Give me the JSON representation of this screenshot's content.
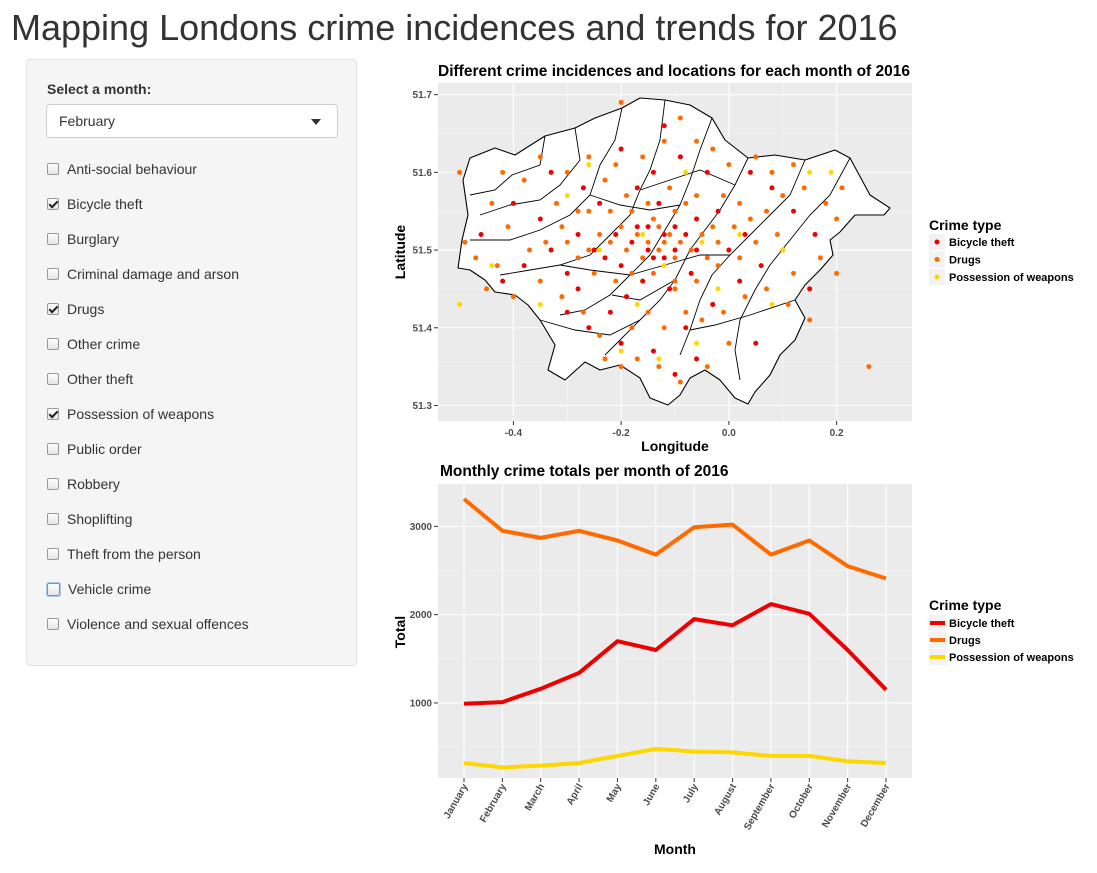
{
  "page": {
    "title": "Mapping Londons crime incidences and trends for 2016"
  },
  "sidebar": {
    "month_label": "Select a month:",
    "month_selected": "February",
    "crime_types": [
      {
        "label": "Anti-social behaviour",
        "checked": false
      },
      {
        "label": "Bicycle theft",
        "checked": true
      },
      {
        "label": "Burglary",
        "checked": false
      },
      {
        "label": "Criminal damage and arson",
        "checked": false
      },
      {
        "label": "Drugs",
        "checked": true
      },
      {
        "label": "Other crime",
        "checked": false
      },
      {
        "label": "Other theft",
        "checked": false
      },
      {
        "label": "Possession of weapons",
        "checked": true
      },
      {
        "label": "Public order",
        "checked": false
      },
      {
        "label": "Robbery",
        "checked": false
      },
      {
        "label": "Shoplifting",
        "checked": false
      },
      {
        "label": "Theft from the person",
        "checked": false
      },
      {
        "label": "Vehicle crime",
        "checked": false,
        "focused": true
      },
      {
        "label": "Violence and sexual offences",
        "checked": false
      }
    ]
  },
  "colors": {
    "bicycle_theft": "#ee0000",
    "drugs": "#ff6a00",
    "possession_of_weapons": "#ffd700",
    "panel_bg": "#ebebeb",
    "grid": "#ffffff"
  },
  "chart_data": [
    {
      "type": "scatter",
      "title": "Different crime incidences and locations for each month of 2016",
      "xlabel": "Longitude",
      "ylabel": "Latitude",
      "xlim": [
        -0.54,
        0.34
      ],
      "ylim": [
        51.28,
        51.715
      ],
      "xticks": [
        -0.4,
        -0.2,
        0.0,
        0.2
      ],
      "xtick_labels": [
        "-0.4",
        "-0.2",
        "0.0",
        "0.2"
      ],
      "yticks": [
        51.3,
        51.4,
        51.5,
        51.6,
        51.7
      ],
      "ytick_labels": [
        "51.3",
        "51.4",
        "51.5",
        "51.6",
        "51.7"
      ],
      "grid": true,
      "legend": {
        "title": "Crime type",
        "placement": "right",
        "entries": [
          "Bicycle theft",
          "Drugs",
          "Possession of weapons"
        ]
      },
      "outline_note": "London borough boundaries drawn as black outlines on white fill",
      "series": [
        {
          "name": "Bicycle theft",
          "color": "#ee0000",
          "points": [
            [
              -0.21,
              51.52
            ],
            [
              -0.18,
              51.51
            ],
            [
              -0.15,
              51.53
            ],
            [
              -0.12,
              51.52
            ],
            [
              -0.1,
              51.5
            ],
            [
              -0.08,
              51.52
            ],
            [
              -0.14,
              51.49
            ],
            [
              -0.2,
              51.48
            ],
            [
              -0.25,
              51.5
            ],
            [
              -0.28,
              51.52
            ],
            [
              -0.3,
              51.47
            ],
            [
              -0.33,
              51.5
            ],
            [
              -0.06,
              51.54
            ],
            [
              -0.02,
              51.55
            ],
            [
              0.0,
              51.5
            ],
            [
              0.03,
              51.52
            ],
            [
              -0.16,
              51.46
            ],
            [
              -0.19,
              51.44
            ],
            [
              -0.22,
              51.42
            ],
            [
              -0.11,
              51.45
            ],
            [
              -0.07,
              51.47
            ],
            [
              -0.13,
              51.56
            ],
            [
              -0.17,
              51.58
            ],
            [
              -0.24,
              51.56
            ],
            [
              -0.27,
              51.58
            ],
            [
              -0.35,
              51.54
            ],
            [
              -0.38,
              51.48
            ],
            [
              -0.42,
              51.46
            ],
            [
              -0.3,
              51.42
            ],
            [
              -0.26,
              51.4
            ],
            [
              -0.2,
              51.38
            ],
            [
              -0.14,
              51.37
            ],
            [
              -0.08,
              51.4
            ],
            [
              -0.03,
              51.43
            ],
            [
              0.02,
              51.46
            ],
            [
              0.06,
              51.48
            ],
            [
              0.1,
              51.5
            ],
            [
              0.12,
              51.55
            ],
            [
              0.08,
              51.58
            ],
            [
              0.04,
              51.6
            ],
            [
              -0.04,
              51.6
            ],
            [
              -0.09,
              51.62
            ],
            [
              -0.14,
              51.6
            ],
            [
              -0.2,
              51.63
            ],
            [
              -0.12,
              51.66
            ],
            [
              -0.46,
              51.52
            ],
            [
              -0.4,
              51.56
            ],
            [
              -0.33,
              51.6
            ],
            [
              -0.23,
              51.49
            ],
            [
              -0.15,
              51.5
            ],
            [
              -0.1,
              51.53
            ],
            [
              -0.12,
              51.49
            ],
            [
              -0.06,
              51.5
            ],
            [
              -0.17,
              51.53
            ],
            [
              -0.28,
              51.45
            ],
            [
              0.15,
              51.45
            ],
            [
              0.16,
              51.52
            ],
            [
              0.05,
              51.38
            ],
            [
              -0.1,
              51.34
            ],
            [
              -0.06,
              51.36
            ]
          ]
        },
        {
          "name": "Drugs",
          "color": "#ff6a00",
          "points": [
            [
              -0.13,
              51.53
            ],
            [
              -0.12,
              51.51
            ],
            [
              -0.11,
              51.52
            ],
            [
              -0.09,
              51.51
            ],
            [
              -0.1,
              51.49
            ],
            [
              -0.07,
              51.5
            ],
            [
              -0.05,
              51.52
            ],
            [
              -0.03,
              51.53
            ],
            [
              -0.15,
              51.51
            ],
            [
              -0.17,
              51.52
            ],
            [
              -0.19,
              51.5
            ],
            [
              -0.2,
              51.53
            ],
            [
              -0.22,
              51.51
            ],
            [
              -0.24,
              51.52
            ],
            [
              -0.26,
              51.5
            ],
            [
              -0.18,
              51.47
            ],
            [
              -0.14,
              51.47
            ],
            [
              -0.1,
              51.46
            ],
            [
              -0.06,
              51.46
            ],
            [
              -0.02,
              51.48
            ],
            [
              0.01,
              51.53
            ],
            [
              0.04,
              51.54
            ],
            [
              0.07,
              51.55
            ],
            [
              0.1,
              51.57
            ],
            [
              0.14,
              51.58
            ],
            [
              0.18,
              51.56
            ],
            [
              0.2,
              51.54
            ],
            [
              -0.08,
              51.56
            ],
            [
              -0.11,
              51.58
            ],
            [
              -0.15,
              51.56
            ],
            [
              -0.19,
              51.57
            ],
            [
              -0.23,
              51.59
            ],
            [
              -0.28,
              51.55
            ],
            [
              -0.31,
              51.53
            ],
            [
              -0.34,
              51.51
            ],
            [
              -0.37,
              51.5
            ],
            [
              -0.41,
              51.53
            ],
            [
              -0.44,
              51.56
            ],
            [
              -0.47,
              51.49
            ],
            [
              -0.45,
              51.45
            ],
            [
              -0.4,
              51.44
            ],
            [
              -0.35,
              51.46
            ],
            [
              -0.31,
              51.44
            ],
            [
              -0.27,
              51.42
            ],
            [
              -0.24,
              51.39
            ],
            [
              -0.18,
              51.4
            ],
            [
              -0.15,
              51.42
            ],
            [
              -0.12,
              51.4
            ],
            [
              -0.08,
              51.42
            ],
            [
              -0.05,
              51.41
            ],
            [
              -0.01,
              51.42
            ],
            [
              0.03,
              51.44
            ],
            [
              0.07,
              51.45
            ],
            [
              0.12,
              51.47
            ],
            [
              0.17,
              51.49
            ],
            [
              0.2,
              51.47
            ],
            [
              0.15,
              51.41
            ],
            [
              0.11,
              51.43
            ],
            [
              0.0,
              51.38
            ],
            [
              -0.04,
              51.35
            ],
            [
              -0.09,
              51.33
            ],
            [
              -0.13,
              51.35
            ],
            [
              -0.17,
              51.36
            ],
            [
              -0.2,
              51.35
            ],
            [
              -0.23,
              51.36
            ],
            [
              -0.06,
              51.64
            ],
            [
              -0.03,
              51.63
            ],
            [
              -0.09,
              51.67
            ],
            [
              -0.12,
              51.64
            ],
            [
              -0.16,
              51.62
            ],
            [
              -0.21,
              51.61
            ],
            [
              -0.26,
              51.62
            ],
            [
              -0.3,
              51.6
            ],
            [
              -0.35,
              51.62
            ],
            [
              -0.38,
              51.59
            ],
            [
              -0.42,
              51.6
            ],
            [
              0.0,
              51.61
            ],
            [
              0.05,
              51.62
            ],
            [
              0.08,
              51.6
            ],
            [
              0.12,
              51.61
            ],
            [
              0.21,
              51.58
            ],
            [
              -0.5,
              51.6
            ],
            [
              -0.49,
              51.51
            ],
            [
              -0.43,
              51.48
            ],
            [
              0.26,
              51.35
            ],
            [
              -0.2,
              51.69
            ],
            [
              -0.1,
              51.45
            ],
            [
              -0.16,
              51.49
            ],
            [
              -0.13,
              51.5
            ],
            [
              -0.04,
              51.49
            ],
            [
              -0.02,
              51.51
            ],
            [
              0.02,
              51.49
            ],
            [
              0.05,
              51.51
            ],
            [
              0.09,
              51.52
            ],
            [
              -0.21,
              51.46
            ],
            [
              -0.25,
              51.47
            ],
            [
              -0.28,
              51.49
            ],
            [
              -0.3,
              51.51
            ],
            [
              -0.32,
              51.56
            ],
            [
              -0.26,
              51.55
            ],
            [
              -0.22,
              51.55
            ],
            [
              -0.18,
              51.55
            ],
            [
              -0.14,
              51.54
            ],
            [
              -0.1,
              51.55
            ],
            [
              -0.06,
              51.57
            ],
            [
              -0.01,
              51.57
            ],
            [
              0.02,
              51.56
            ]
          ]
        },
        {
          "name": "Possession of weapons",
          "color": "#ffd700",
          "points": [
            [
              -0.5,
              51.43
            ],
            [
              -0.16,
              51.52
            ],
            [
              -0.12,
              51.48
            ],
            [
              -0.05,
              51.51
            ],
            [
              0.02,
              51.52
            ],
            [
              0.15,
              51.6
            ],
            [
              0.19,
              51.6
            ],
            [
              -0.2,
              51.37
            ],
            [
              -0.13,
              51.36
            ],
            [
              -0.3,
              51.57
            ],
            [
              -0.44,
              51.48
            ],
            [
              -0.08,
              51.6
            ],
            [
              -0.24,
              51.5
            ],
            [
              0.08,
              51.43
            ],
            [
              -0.02,
              51.45
            ],
            [
              -0.35,
              51.43
            ],
            [
              -0.17,
              51.43
            ],
            [
              0.1,
              51.5
            ],
            [
              -0.06,
              51.38
            ],
            [
              -0.26,
              51.61
            ]
          ]
        }
      ]
    },
    {
      "type": "line",
      "title": "Monthly crime totals per month of 2016",
      "xlabel": "Month",
      "ylabel": "Total",
      "categories": [
        "January",
        "February",
        "March",
        "April",
        "May",
        "June",
        "July",
        "August",
        "September",
        "October",
        "November",
        "December"
      ],
      "ylim": [
        150,
        3480
      ],
      "yticks": [
        1000,
        2000,
        3000
      ],
      "ytick_labels": [
        "1000",
        "2000",
        "3000"
      ],
      "grid": true,
      "legend": {
        "title": "Crime type",
        "placement": "right",
        "entries": [
          "Bicycle theft",
          "Drugs",
          "Possession of weapons"
        ]
      },
      "series": [
        {
          "name": "Bicycle theft",
          "color": "#ee0000",
          "values": [
            990,
            1010,
            1160,
            1340,
            1700,
            1600,
            1950,
            1880,
            2120,
            2010,
            1600,
            1150
          ]
        },
        {
          "name": "Drugs",
          "color": "#ff6a00",
          "values": [
            3310,
            2950,
            2870,
            2950,
            2840,
            2680,
            2990,
            3020,
            2680,
            2840,
            2550,
            2410
          ]
        },
        {
          "name": "Possession of weapons",
          "color": "#ffd700",
          "values": [
            320,
            270,
            290,
            320,
            400,
            480,
            450,
            440,
            400,
            400,
            340,
            320
          ]
        }
      ]
    }
  ]
}
